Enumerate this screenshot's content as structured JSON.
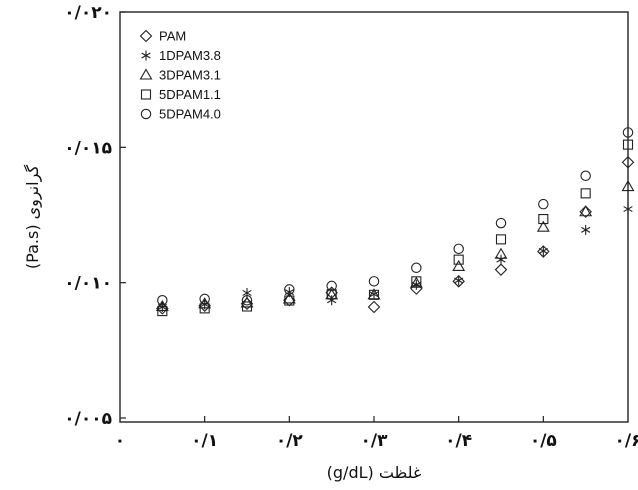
{
  "chart_data": {
    "type": "scatter",
    "title": "",
    "xlabel": "غلظت (g/dL)",
    "ylabel": "گرانروی (Pa.s)",
    "xlim": [
      0,
      0.6
    ],
    "ylim": [
      0.005,
      0.02
    ],
    "x_ticks": [
      0,
      0.1,
      0.2,
      0.3,
      0.4,
      0.5,
      0.6
    ],
    "x_tick_labels": [
      "۰",
      "۰/۱",
      "۰/۲",
      "۰/۳",
      "۰/۴",
      "۰/۵",
      "۰/۶"
    ],
    "y_ticks": [
      0.005,
      0.01,
      0.015,
      0.02
    ],
    "y_tick_labels": [
      "۰/۰۰۵",
      "۰/۰۱۰",
      "۰/۰۱۵",
      "۰/۰۲۰"
    ],
    "grid": false,
    "legend_position": "top-left",
    "series": [
      {
        "name": "PAM",
        "marker": "diamond",
        "x": [
          0.05,
          0.1,
          0.15,
          0.2,
          0.25,
          0.3,
          0.35,
          0.4,
          0.45,
          0.5,
          0.55,
          0.6
        ],
        "y": [
          0.00905,
          0.00915,
          0.00922,
          0.00935,
          0.00963,
          0.0091,
          0.00978,
          0.01005,
          0.01048,
          0.01115,
          0.01262,
          0.01445
        ]
      },
      {
        "name": "1DPAM3.8",
        "marker": "star",
        "x": [
          0.05,
          0.1,
          0.15,
          0.2,
          0.25,
          0.3,
          0.35,
          0.4,
          0.45,
          0.5,
          0.55,
          0.6
        ],
        "y": [
          0.0091,
          0.0092,
          0.00962,
          0.00965,
          0.00935,
          0.00957,
          0.00992,
          0.01008,
          0.01085,
          0.01117,
          0.01195,
          0.01272
        ]
      },
      {
        "name": "3DPAM3.1",
        "marker": "triangle",
        "x": [
          0.05,
          0.1,
          0.15,
          0.2,
          0.25,
          0.3,
          0.35,
          0.4,
          0.45,
          0.5,
          0.55,
          0.6
        ],
        "y": [
          0.00912,
          0.00922,
          0.00925,
          0.0094,
          0.00955,
          0.00955,
          0.00998,
          0.0106,
          0.01105,
          0.01205,
          0.01262,
          0.01355
        ]
      },
      {
        "name": "5DPAM1.1",
        "marker": "square",
        "x": [
          0.05,
          0.1,
          0.15,
          0.2,
          0.25,
          0.3,
          0.35,
          0.4,
          0.45,
          0.5,
          0.55,
          0.6
        ],
        "y": [
          0.00895,
          0.00905,
          0.00912,
          0.00934,
          0.00957,
          0.00955,
          0.01005,
          0.01085,
          0.0116,
          0.01235,
          0.0133,
          0.0151
        ]
      },
      {
        "name": "5DPAM4.0",
        "marker": "circle",
        "x": [
          0.05,
          0.1,
          0.15,
          0.2,
          0.25,
          0.3,
          0.35,
          0.4,
          0.45,
          0.5,
          0.55,
          0.6
        ],
        "y": [
          0.00935,
          0.0094,
          0.00935,
          0.00975,
          0.00988,
          0.01005,
          0.01055,
          0.01125,
          0.0122,
          0.0129,
          0.01395,
          0.01555
        ]
      }
    ]
  }
}
